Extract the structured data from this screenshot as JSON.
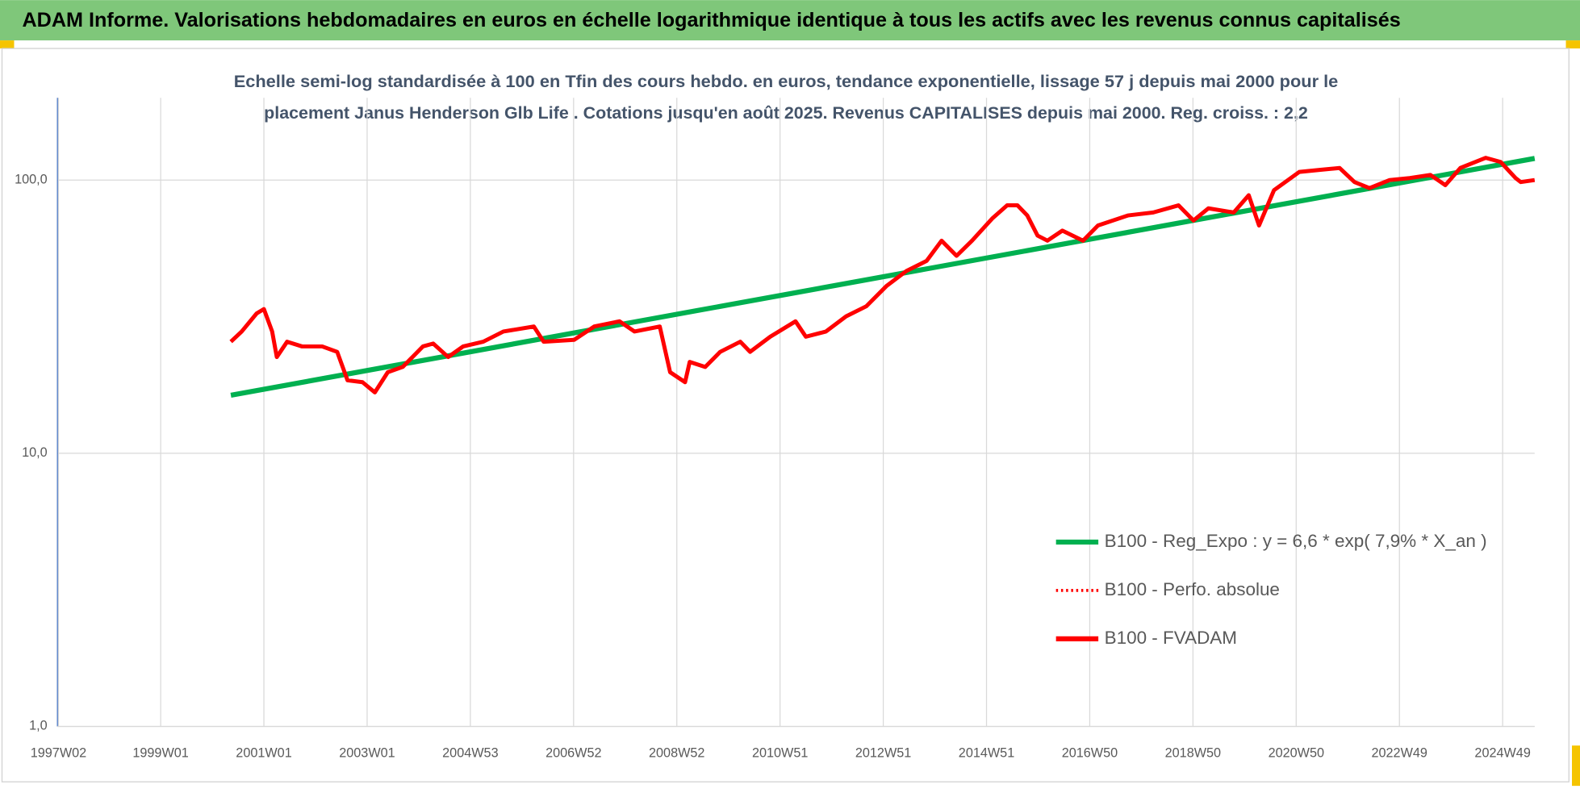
{
  "chart_data": {
    "type": "line",
    "title": "ADAM Informe. Valorisations hebdomadaires en euros en échelle logarithmique identique à tous les actifs avec les revenus connus capitalisés",
    "subtitle": [
      "Echelle semi-log standardisée à 100 en Tfin des cours hebdo. en euros, tendance exponentielle, lissage 57 j depuis mai 2000 pour le",
      "placement Janus Henderson Glb Life . Cotations jusqu'en août 2025. Revenus CAPITALISES depuis mai 2000. Reg. croiss. : 2,2"
    ],
    "log_scale_y": true,
    "grid": true,
    "legend": "right",
    "xlim": [
      1997.0,
      2025.62
    ],
    "xticks": [
      {
        "value": 1997.02,
        "label": "1997W02"
      },
      {
        "value": 1999.0,
        "label": "1999W01"
      },
      {
        "value": 2001.0,
        "label": "2001W01"
      },
      {
        "value": 2003.0,
        "label": "2003W01"
      },
      {
        "value": 2005.0,
        "label": "2004W53"
      },
      {
        "value": 2007.0,
        "label": "2006W52"
      },
      {
        "value": 2009.0,
        "label": "2008W52"
      },
      {
        "value": 2011.0,
        "label": "2010W51"
      },
      {
        "value": 2013.0,
        "label": "2012W51"
      },
      {
        "value": 2015.0,
        "label": "2014W51"
      },
      {
        "value": 2017.0,
        "label": "2016W50"
      },
      {
        "value": 2019.0,
        "label": "2018W50"
      },
      {
        "value": 2021.0,
        "label": "2020W50"
      },
      {
        "value": 2023.0,
        "label": "2022W49"
      },
      {
        "value": 2025.0,
        "label": "2024W49"
      }
    ],
    "ylim": [
      1,
      200
    ],
    "yticks": [
      {
        "value": 1,
        "label": "1,0"
      },
      {
        "value": 10,
        "label": "10,0"
      },
      {
        "value": 100,
        "label": "100,0"
      }
    ],
    "series": [
      {
        "name": "B100 - Reg_Expo : y = 6,6 * exp( 7,9% *  X_an )",
        "color": "#00b050",
        "dash": "solid",
        "x": [
          2000.36,
          2025.62
        ],
        "values": [
          16.3,
          120
        ]
      },
      {
        "name": "B100 - Perfo. absolue",
        "color": "#ff0000",
        "dash": "dotted",
        "x": [],
        "values": []
      },
      {
        "name": "B100 - FVADAM",
        "color": "#ff0000",
        "dash": "solid",
        "x": [
          2000.36,
          2000.57,
          2000.86,
          2001.0,
          2001.16,
          2001.25,
          2001.45,
          2001.74,
          2002.13,
          2002.42,
          2002.62,
          2002.91,
          2003.15,
          2003.4,
          2003.69,
          2004.08,
          2004.28,
          2004.57,
          2004.86,
          2005.25,
          2005.64,
          2006.23,
          2006.42,
          2007.01,
          2007.4,
          2007.89,
          2008.18,
          2008.67,
          2008.87,
          2009.16,
          2009.25,
          2009.55,
          2009.84,
          2010.23,
          2010.42,
          2010.81,
          2011.3,
          2011.5,
          2011.89,
          2012.28,
          2012.67,
          2013.06,
          2013.45,
          2013.84,
          2014.13,
          2014.42,
          2014.72,
          2015.11,
          2015.4,
          2015.6,
          2015.79,
          2015.99,
          2016.18,
          2016.47,
          2016.87,
          2017.16,
          2017.74,
          2018.23,
          2018.72,
          2019.01,
          2019.3,
          2019.79,
          2020.08,
          2020.28,
          2020.57,
          2021.06,
          2021.45,
          2021.84,
          2022.13,
          2022.42,
          2022.81,
          2023.2,
          2023.6,
          2023.89,
          2024.18,
          2024.67,
          2024.96,
          2025.25,
          2025.35,
          2025.62
        ],
        "values": [
          25.6,
          27.9,
          32.5,
          33.7,
          27.9,
          22.5,
          25.6,
          24.6,
          24.6,
          23.5,
          18.5,
          18.2,
          16.7,
          19.8,
          20.7,
          24.6,
          25.2,
          22.5,
          24.6,
          25.6,
          27.9,
          29.1,
          25.6,
          26.0,
          29.1,
          30.4,
          27.9,
          29.1,
          19.8,
          18.2,
          21.6,
          20.7,
          23.5,
          25.6,
          23.5,
          26.7,
          30.4,
          26.7,
          27.9,
          31.7,
          34.5,
          40.9,
          46.5,
          50.6,
          60.0,
          52.8,
          60.0,
          72.3,
          80.8,
          80.8,
          74.2,
          62.6,
          60.0,
          65.3,
          60.0,
          68.2,
          74.2,
          76.1,
          80.8,
          71.1,
          78.8,
          76.1,
          88.0,
          68.2,
          91.8,
          107.1,
          108.9,
          110.7,
          98.3,
          93.4,
          100,
          101.7,
          104.4,
          95.8,
          110.7,
          120.6,
          116.5,
          101.7,
          98.3,
          100
        ]
      }
    ]
  }
}
